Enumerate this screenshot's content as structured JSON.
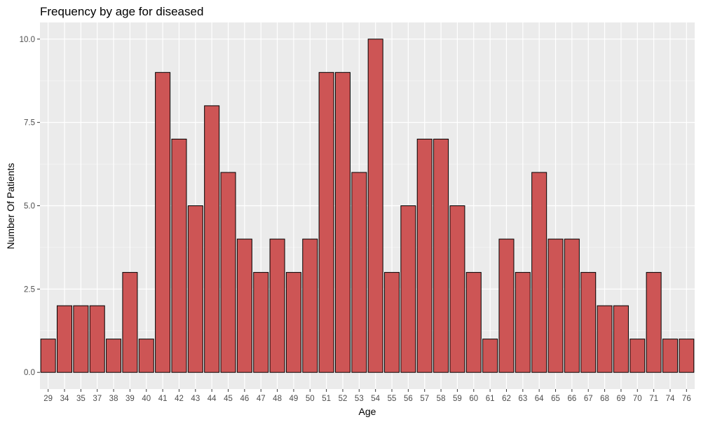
{
  "chart_data": {
    "type": "bar",
    "title": "Frequency by age for diseased",
    "xlabel": "Age",
    "ylabel": "Number Of Patients",
    "categories": [
      "29",
      "34",
      "35",
      "37",
      "38",
      "39",
      "40",
      "41",
      "42",
      "43",
      "44",
      "45",
      "46",
      "47",
      "48",
      "49",
      "50",
      "51",
      "52",
      "53",
      "54",
      "55",
      "56",
      "57",
      "58",
      "59",
      "60",
      "61",
      "62",
      "63",
      "64",
      "65",
      "66",
      "67",
      "68",
      "69",
      "70",
      "71",
      "74",
      "76"
    ],
    "values": [
      1,
      2,
      2,
      2,
      1,
      3,
      1,
      9,
      7,
      5,
      8,
      6,
      4,
      3,
      4,
      3,
      4,
      9,
      9,
      6,
      10,
      3,
      5,
      7,
      7,
      5,
      3,
      1,
      4,
      3,
      6,
      4,
      4,
      3,
      2,
      2,
      1,
      3,
      1,
      1
    ],
    "ylim": [
      0,
      10.5
    ],
    "yticks": [
      0,
      2.5,
      5,
      7.5,
      10
    ],
    "ytick_labels": [
      "0.0",
      "2.5",
      "5.0",
      "7.5",
      "10.0"
    ],
    "grid": true,
    "colors": {
      "bar_fill": "#cd5555",
      "bar_stroke": "#000000",
      "panel": "#ebebeb",
      "grid_major": "#ffffff",
      "tick_text": "#4d4d4d"
    }
  }
}
